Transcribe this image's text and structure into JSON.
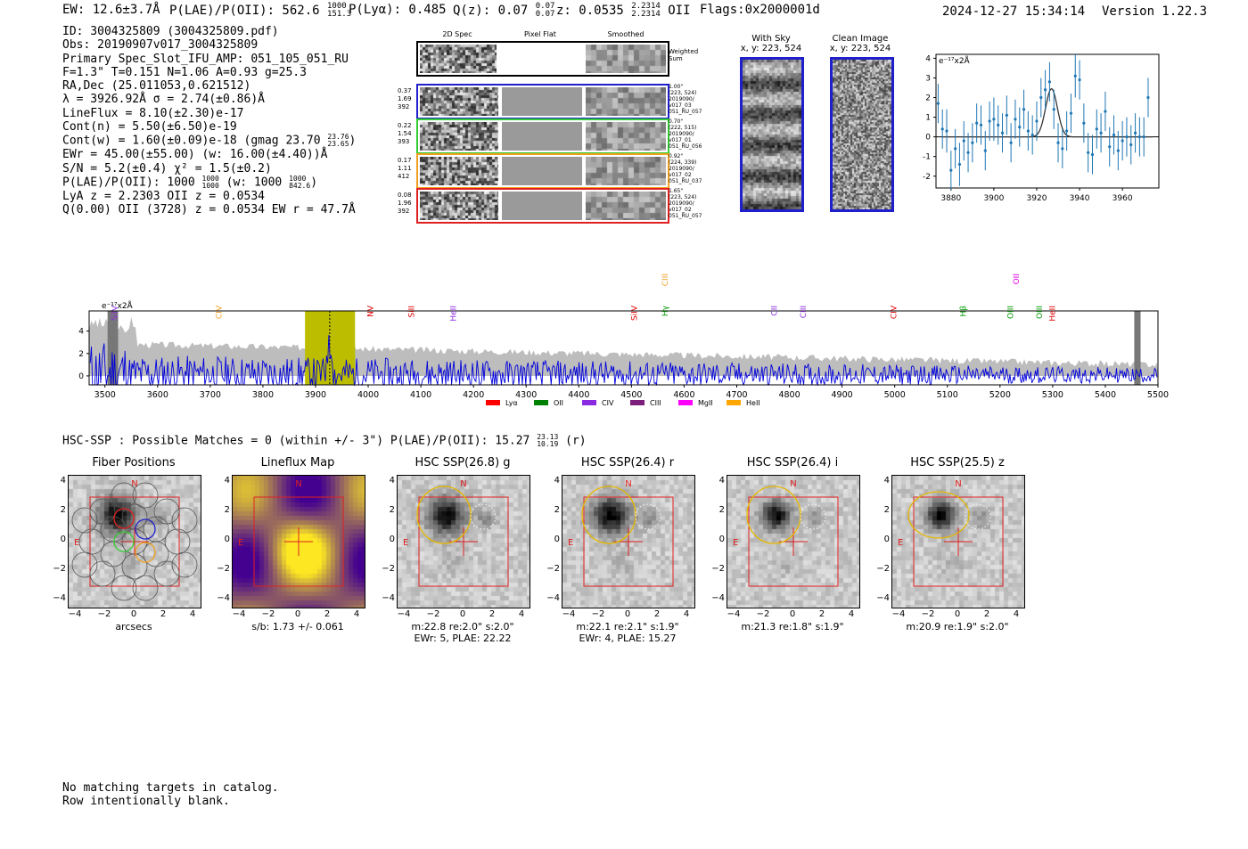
{
  "header": {
    "ew": "EW: 12.6±3.7Å",
    "plae_label": "P(LAE)/P(OII): 562.6",
    "plae_hi": "1000",
    "plae_lo": "151.3",
    "plya": "P(Lyα): 0.485",
    "qz_label": "Q(z): 0.07",
    "qz_hi": "0.07",
    "qz_lo": "0.07",
    "z_label": "z: 0.0535",
    "z_hi": "2.2314",
    "z_lo": "2.2314",
    "z_line": "OII",
    "flags": "Flags:0x2000001d",
    "datetime": "2024-12-27 15:34:14",
    "version": "Version 1.22.3"
  },
  "info": {
    "l1": "ID: 3004325809 (3004325809.pdf)",
    "l2": "Obs: 20190907v017_3004325809",
    "l3": "Primary Spec_Slot_IFU_AMP: 051_105_051_RU",
    "l4": "F=1.3\"  T=0.151  N=1.06  A=0.93  g=25.3",
    "l5": "RA,Dec (25.011053,0.621512)",
    "l6": "λ = 3926.92Å  σ = 2.74(±0.86)Å",
    "l7": "LineFlux = 8.10(±2.30)e-17",
    "l8": "Cont(n) = 5.50(±6.50)e-19",
    "l9a": "Cont(w) = 1.60(±0.09)e-18 (gmag 23.70",
    "l9hi": "23.76",
    "l9lo": "23.65",
    "l9b": ")",
    "l10": "EWr = 45.00(±55.00) (w: 16.00(±4.40))Å",
    "l11": "S/N = 5.2(±0.4)  χ² = 1.5(±0.2)",
    "l12a": "P(LAE)/P(OII): 1000",
    "l12hi": "1000",
    "l12lo": "1000",
    "l12b": "(w: 1000",
    "l12whi": "1000",
    "l12wlo": "842.6",
    "l12c": ")",
    "l13": "LyA z = 2.2303   OII z = 0.0534",
    "l14": "Q(0.00) OII (3728) z = 0.0534   EW r = 47.7Å"
  },
  "stamps": {
    "col_2d": "2D Spec",
    "col_flat": "Pixel Flat",
    "col_smooth": "Smoothed",
    "weighted_l1": "Weighted",
    "weighted_l2": "Sum",
    "rows": [
      {
        "color": "#1f1fcc",
        "left": [
          "0.37",
          "1.69",
          "392"
        ],
        "right": [
          "1.00\"",
          "(223, 524)",
          "2019090/",
          "v017_03",
          "051_RU_057"
        ]
      },
      {
        "color": "#33cc33",
        "left": [
          "0.22",
          "1.54",
          "393"
        ],
        "right": [
          "0.70\"",
          "(222, 515)",
          "2019090/",
          "v017_01",
          "051_RU_056"
        ]
      },
      {
        "color": "#f0a020",
        "left": [
          "0.17",
          "1.11",
          "412"
        ],
        "right": [
          "0.92\"",
          "(224, 339)",
          "2019090/",
          "v017_02",
          "051_RU_037"
        ]
      },
      {
        "color": "#e02020",
        "left": [
          "0.08",
          "1.96",
          "392"
        ],
        "right": [
          "1.65\"",
          "(223, 524)",
          "2019090/",
          "v017_02",
          "051_RU_057"
        ]
      }
    ]
  },
  "sky": {
    "with_sky_t1": "With Sky",
    "with_sky_t2": "x, y: 223, 524",
    "clean_t1": "Clean Image",
    "clean_t2": "x, y: 223, 524"
  },
  "zoom_chart": {
    "type": "scatter",
    "unit_label": "e⁻¹⁷x2Å",
    "xlim": [
      3873,
      3977
    ],
    "ylim": [
      -2.6,
      4.2
    ],
    "xticks": [
      3880,
      3900,
      3920,
      3940,
      3960
    ],
    "yticks": [
      -2,
      -1,
      0,
      1,
      2,
      3,
      4
    ],
    "fit_center": 3926.9,
    "fit_sigma": 2.74,
    "fit_amp": 2.45,
    "x": [
      3874,
      3876,
      3878,
      3880,
      3882,
      3884,
      3886,
      3888,
      3890,
      3892,
      3894,
      3896,
      3898,
      3900,
      3902,
      3904,
      3906,
      3908,
      3910,
      3912,
      3914,
      3916,
      3918,
      3920,
      3922,
      3924,
      3926,
      3928,
      3930,
      3932,
      3934,
      3936,
      3938,
      3940,
      3942,
      3944,
      3946,
      3948,
      3950,
      3952,
      3954,
      3956,
      3958,
      3960,
      3962,
      3964,
      3966,
      3968,
      3970,
      3972
    ],
    "y": [
      1.7,
      0.4,
      0.3,
      -1.7,
      -0.6,
      -1.4,
      -0.2,
      -0.8,
      -0.3,
      0.7,
      0.6,
      -0.7,
      0.8,
      0.9,
      0.6,
      0.2,
      1.1,
      -0.3,
      0.9,
      0.5,
      1.4,
      0.3,
      0.1,
      0.8,
      2.0,
      2.4,
      2.8,
      1.4,
      -0.3,
      -0.6,
      0.3,
      1.2,
      3.1,
      2.9,
      0.7,
      -0.8,
      -0.9,
      0.4,
      0.2,
      1.3,
      -0.5,
      0.1,
      -0.7,
      -0.2,
      0.0,
      -0.4,
      0.2,
      0.0,
      0.0,
      2.0
    ],
    "yerr": [
      1.0,
      1.0,
      1.1,
      1.0,
      1.0,
      1.1,
      1.0,
      1.0,
      1.0,
      1.0,
      1.0,
      1.0,
      1.0,
      1.1,
      1.0,
      1.0,
      1.0,
      1.0,
      1.0,
      1.0,
      1.0,
      1.0,
      1.0,
      1.0,
      1.0,
      1.0,
      1.0,
      1.0,
      1.0,
      1.0,
      1.0,
      1.0,
      1.1,
      1.0,
      1.0,
      1.0,
      1.0,
      1.0,
      1.0,
      1.0,
      1.0,
      1.0,
      1.0,
      1.0,
      1.0,
      1.0,
      1.0,
      1.0,
      1.0,
      1.0
    ]
  },
  "full_chart": {
    "type": "line",
    "unit_label": "e⁻¹⁷x2Å",
    "xlim": [
      3470,
      5500
    ],
    "ylim": [
      -0.8,
      5.8
    ],
    "xticks": [
      3500,
      3600,
      3700,
      3800,
      3900,
      4000,
      4100,
      4200,
      4300,
      4400,
      4500,
      4600,
      4700,
      4800,
      4900,
      5000,
      5100,
      5200,
      5300,
      5400,
      5500
    ],
    "yticks": [
      0,
      2,
      4
    ],
    "highlight_range": [
      3880,
      3975
    ],
    "line_wave": 3926.9,
    "lines": [
      {
        "name": "SiIV",
        "wave": 3518,
        "color": "#8a2be2",
        "row": 1
      },
      {
        "name": "CIV",
        "wave": 3716,
        "color": "#f0a020",
        "row": 1
      },
      {
        "name": "NV",
        "wave": 4004,
        "color": "#e00000",
        "row": 1
      },
      {
        "name": "SiII",
        "wave": 4082,
        "color": "#e00000",
        "row": 1
      },
      {
        "name": "HeII",
        "wave": 4162,
        "color": "#8a2be2",
        "row": 1
      },
      {
        "name": "SiIV",
        "wave": 4505,
        "color": "#e00000",
        "row": 1
      },
      {
        "name": "CIII",
        "wave": 4564,
        "color": "#f0a020",
        "row": 0
      },
      {
        "name": "Hγ",
        "wave": 4564,
        "color": "#009900",
        "row": 1
      },
      {
        "name": "CII",
        "wave": 4771,
        "color": "#8a2be2",
        "row": 1
      },
      {
        "name": "CIII",
        "wave": 4826,
        "color": "#8a2be2",
        "row": 1
      },
      {
        "name": "CIV",
        "wave": 4998,
        "color": "#e00000",
        "row": 1
      },
      {
        "name": "Hβ",
        "wave": 5130,
        "color": "#009900",
        "row": 1
      },
      {
        "name": "OII",
        "wave": 5231,
        "color": "#e000e0",
        "row": 0
      },
      {
        "name": "OIII",
        "wave": 5220,
        "color": "#009900",
        "row": 1
      },
      {
        "name": "OIII",
        "wave": 5275,
        "color": "#009900",
        "row": 1
      },
      {
        "name": "HeII",
        "wave": 5299,
        "color": "#e00000",
        "row": 1
      }
    ],
    "legend": [
      {
        "label": "Lyα",
        "color": "#ff0000"
      },
      {
        "label": "OII",
        "color": "#008000"
      },
      {
        "label": "CIV",
        "color": "#8a2be2"
      },
      {
        "label": "CIII",
        "color": "#7b1f7b"
      },
      {
        "label": "MgII",
        "color": "#ff00ff"
      },
      {
        "label": "HeII",
        "color": "#ffa500"
      }
    ]
  },
  "hsc": {
    "title_a": "HSC-SSP : Possible Matches = 0 (within +/- 3\")  P(LAE)/P(OII): 15.27",
    "title_hi": "23.13",
    "title_lo": "10.19",
    "title_b": "(r)",
    "panels": [
      {
        "title": "Fiber Positions",
        "cap1": "arcsecs",
        "cap2": ""
      },
      {
        "title": "Lineflux Map",
        "cap1": "s/b: 1.73 +/- 0.061",
        "cap2": ""
      },
      {
        "title": "HSC SSP(26.8) g",
        "cap1": "m:22.8  re:2.0\"  s:2.0\"",
        "cap2": "EWr: 5, PLAE: 22.22"
      },
      {
        "title": "HSC SSP(26.4) r",
        "cap1": "m:22.1  re:2.1\"  s:1.9\"",
        "cap2": "EWr: 4, PLAE: 15.27"
      },
      {
        "title": "HSC SSP(26.4) i",
        "cap1": "m:21.3  re:1.8\"  s:1.9\"",
        "cap2": ""
      },
      {
        "title": "HSC SSP(25.5) z",
        "cap1": "m:20.9  re:1.9\"  s:2.0\"",
        "cap2": ""
      }
    ],
    "ticks": [
      "−4",
      "−2",
      "0",
      "2",
      "4"
    ],
    "north": "N",
    "east": "E"
  },
  "footer": {
    "l1": "No matching targets in catalog.",
    "l2": "Row intentionally blank."
  }
}
